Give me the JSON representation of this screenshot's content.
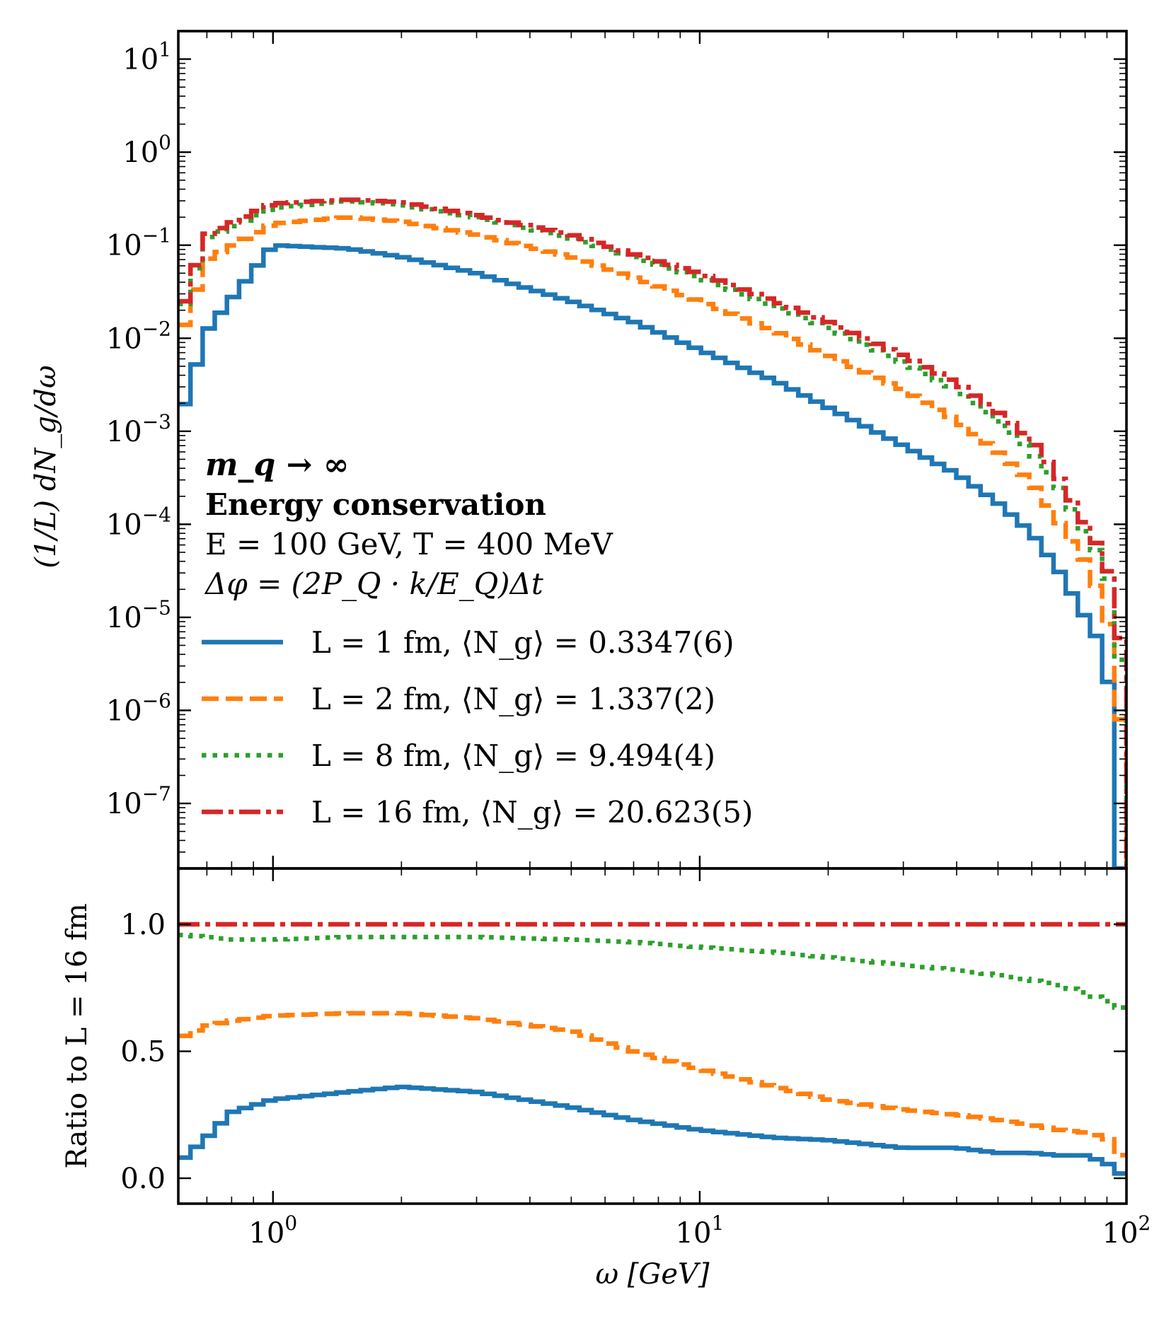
{
  "annotations": {
    "mass": "m_q → ∞",
    "method": "Energy conservation",
    "params": "E = 100 GeV,   T = 400 MeV",
    "formula": "Δφ = (2P_Q · k/E_Q)Δt"
  },
  "legend": [
    {
      "label": "L = 1 fm,    ⟨N_g⟩ = 0.3347(6)",
      "color": "#1f77b4",
      "style": "solid"
    },
    {
      "label": "L = 2 fm,    ⟨N_g⟩ = 1.337(2)",
      "color": "#ff7f0e",
      "style": "dashed"
    },
    {
      "label": "L = 8 fm,    ⟨N_g⟩ = 9.494(4)",
      "color": "#2ca02c",
      "style": "dotted"
    },
    {
      "label": "L = 16 fm,  ⟨N_g⟩ = 20.623(5)",
      "color": "#d62728",
      "style": "dashdot"
    }
  ],
  "axes": {
    "xlabel": "ω [GeV]",
    "top_ylabel": "(1/L) dN_g/dω",
    "bottom_ylabel": "Ratio to L = 16 fm",
    "x_ticks": [
      {
        "base": "10",
        "exp": "0"
      },
      {
        "base": "10",
        "exp": "1"
      },
      {
        "base": "10",
        "exp": "2"
      }
    ],
    "top_y_ticks": [
      {
        "base": "10",
        "exp": "1"
      },
      {
        "base": "10",
        "exp": "0"
      },
      {
        "base": "10",
        "exp": "−1"
      },
      {
        "base": "10",
        "exp": "−2"
      },
      {
        "base": "10",
        "exp": "−3"
      },
      {
        "base": "10",
        "exp": "−4"
      },
      {
        "base": "10",
        "exp": "−5"
      },
      {
        "base": "10",
        "exp": "−6"
      },
      {
        "base": "10",
        "exp": "−7"
      }
    ],
    "bottom_y_ticks": [
      "1.0",
      "0.5",
      "0.0"
    ]
  },
  "chart_data": [
    {
      "type": "line",
      "panel": "top",
      "xscale": "log",
      "yscale": "log",
      "xlim": [
        0.6,
        100
      ],
      "ylim": [
        2e-08,
        20
      ],
      "x": [
        0.6,
        0.7,
        1.0,
        1.5,
        2,
        3,
        5,
        7,
        10,
        15,
        20,
        30,
        40,
        50,
        60,
        70,
        80,
        90,
        95
      ],
      "series": [
        {
          "name": "L = 1 fm",
          "color": "#1f77b4",
          "style": "solid",
          "values": [
            0.0012,
            0.012,
            0.1,
            0.092,
            0.075,
            0.05,
            0.025,
            0.015,
            0.0075,
            0.0035,
            0.0018,
            0.0007,
            0.00035,
            0.00017,
            8e-05,
            3e-05,
            1e-05,
            4e-06,
            2e-08
          ]
        },
        {
          "name": "L = 2 fm",
          "color": "#ff7f0e",
          "style": "dashed",
          "values": [
            0.009,
            0.07,
            0.17,
            0.2,
            0.18,
            0.13,
            0.075,
            0.045,
            0.025,
            0.012,
            0.0065,
            0.0028,
            0.0013,
            0.0006,
            0.00028,
            0.0001,
            4e-05,
            1.2e-05,
            8e-07
          ]
        },
        {
          "name": "L = 8 fm",
          "color": "#2ca02c",
          "style": "dotted",
          "values": [
            0.015,
            0.12,
            0.25,
            0.3,
            0.27,
            0.2,
            0.12,
            0.075,
            0.045,
            0.022,
            0.013,
            0.0055,
            0.0028,
            0.0013,
            0.0006,
            0.00024,
            8e-05,
            3.5e-05,
            3.5e-06
          ]
        },
        {
          "name": "L = 16 fm",
          "color": "#d62728",
          "style": "dashdot",
          "values": [
            0.016,
            0.13,
            0.28,
            0.31,
            0.29,
            0.21,
            0.13,
            0.08,
            0.05,
            0.025,
            0.015,
            0.0065,
            0.0033,
            0.0016,
            0.0008,
            0.0003,
            0.0001,
            4e-05,
            6e-06
          ]
        }
      ]
    },
    {
      "type": "line",
      "panel": "bottom",
      "xscale": "log",
      "yscale": "linear",
      "xlim": [
        0.6,
        100
      ],
      "ylim": [
        -0.1,
        1.22
      ],
      "x": [
        0.6,
        0.7,
        0.8,
        1.0,
        1.5,
        2,
        3,
        5,
        7,
        10,
        15,
        20,
        30,
        40,
        50,
        60,
        70,
        80,
        90,
        100
      ],
      "series": [
        {
          "name": "L = 1 fm",
          "color": "#1f77b4",
          "style": "solid",
          "values": [
            0.06,
            0.16,
            0.26,
            0.31,
            0.34,
            0.36,
            0.34,
            0.28,
            0.23,
            0.19,
            0.16,
            0.15,
            0.12,
            0.12,
            0.1,
            0.1,
            0.09,
            0.09,
            0.06,
            0.0
          ]
        },
        {
          "name": "L = 2 fm",
          "color": "#ff7f0e",
          "style": "dashed",
          "values": [
            0.55,
            0.6,
            0.62,
            0.64,
            0.65,
            0.65,
            0.63,
            0.58,
            0.5,
            0.43,
            0.36,
            0.31,
            0.27,
            0.25,
            0.23,
            0.21,
            0.19,
            0.18,
            0.16,
            0.06
          ]
        },
        {
          "name": "L = 8 fm",
          "color": "#2ca02c",
          "style": "dotted",
          "values": [
            0.96,
            0.95,
            0.94,
            0.94,
            0.95,
            0.95,
            0.95,
            0.94,
            0.93,
            0.91,
            0.89,
            0.87,
            0.84,
            0.82,
            0.8,
            0.78,
            0.76,
            0.73,
            0.7,
            0.66
          ]
        },
        {
          "name": "L = 16 fm",
          "color": "#d62728",
          "style": "dashdot",
          "values": [
            1.0,
            1.0,
            1.0,
            1.0,
            1.0,
            1.0,
            1.0,
            1.0,
            1.0,
            1.0,
            1.0,
            1.0,
            1.0,
            1.0,
            1.0,
            1.0,
            1.0,
            1.0,
            1.0,
            1.0
          ]
        }
      ]
    }
  ]
}
